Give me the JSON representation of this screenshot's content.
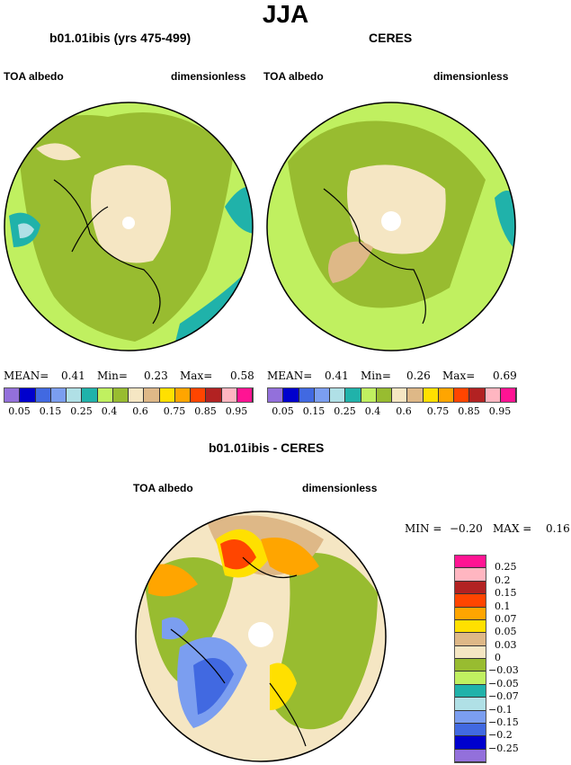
{
  "title": "JJA",
  "colors": [
    "#9370DB",
    "#0000CD",
    "#4169E1",
    "#7B9EF0",
    "#B0E0E6",
    "#20B2AA",
    "#C0F060",
    "#98BC30",
    "#F5E6C3",
    "#DEB887",
    "#FFE000",
    "#FFA500",
    "#FF4500",
    "#B22222",
    "#FFB6C1",
    "#FF1493"
  ],
  "panels": [
    {
      "subtitle": "b01.01ibis (yrs 475-499)",
      "left_label": "TOA albedo",
      "right_label": "dimensionless",
      "stats": {
        "mean_label": "MEAN=",
        "mean": "0.41",
        "min_label": "Min=",
        "min": "0.23",
        "max_label": "Max=",
        "max": "0.58"
      }
    },
    {
      "subtitle": "CERES",
      "left_label": "TOA albedo",
      "right_label": "dimensionless",
      "stats": {
        "mean_label": "MEAN=",
        "mean": "0.41",
        "min_label": "Min=",
        "min": "0.26",
        "max_label": "Max=",
        "max": "0.69"
      }
    }
  ],
  "abs_colorbar_labels": [
    "0.05",
    "0.15",
    "0.25",
    "0.4",
    "0.6",
    "0.75",
    "0.85",
    "0.95"
  ],
  "diff": {
    "subtitle": "b01.01ibis - CERES",
    "left_label": "TOA albedo",
    "right_label": "dimensionless",
    "min_label": "MIN =",
    "min": "−0.20",
    "max_label": "MAX =",
    "max": "0.16",
    "colorbar_labels": [
      "0.25",
      "0.2",
      "0.15",
      "0.1",
      "0.07",
      "0.05",
      "0.03",
      "0",
      "−0.03",
      "−0.05",
      "−0.07",
      "−0.1",
      "−0.15",
      "−0.2",
      "−0.25"
    ]
  }
}
